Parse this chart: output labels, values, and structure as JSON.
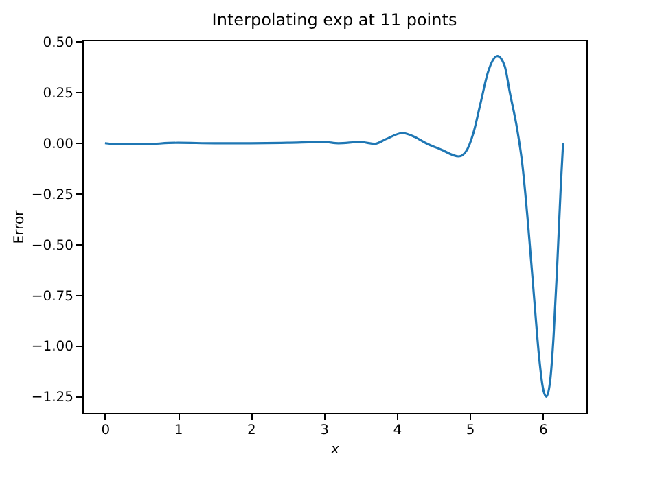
{
  "chart_data": {
    "type": "line",
    "title": "Interpolating exp at 11 points",
    "xlabel": "x",
    "ylabel": "Error",
    "xlim": [
      -0.31,
      6.6
    ],
    "xticks": [
      0,
      1,
      2,
      3,
      4,
      5,
      6
    ],
    "ylim": [
      -1.33,
      0.51
    ],
    "yticks": [
      {
        "value": 0.5,
        "label": "0.50"
      },
      {
        "value": 0.25,
        "label": "0.25"
      },
      {
        "value": 0,
        "label": "0.00"
      },
      {
        "value": -0.25,
        "label": "−0.25"
      },
      {
        "value": -0.5,
        "label": "−0.50"
      },
      {
        "value": -0.75,
        "label": "−0.75"
      },
      {
        "value": -1,
        "label": "−1.00"
      },
      {
        "value": -1.25,
        "label": "−1.25"
      }
    ],
    "grid": false,
    "marker": "none",
    "line_style": "solid",
    "series": [
      {
        "color": "#1f77b4",
        "x": [
          0,
          0.2,
          0.5,
          1,
          1.5,
          2,
          2.5,
          3,
          3.2,
          3.5,
          3.7,
          3.85,
          4.08,
          4.25,
          4.4,
          4.6,
          4.85,
          4.95,
          5.05,
          5.15,
          5.25,
          5.38,
          5.48,
          5.55,
          5.65,
          5.72,
          5.8,
          5.88,
          5.95,
          6.0,
          6.05,
          6.1,
          6.15,
          6.2,
          6.25,
          6.28
        ],
        "values": [
          0,
          -0.005,
          -0.005,
          0.002,
          0,
          0,
          0.002,
          0.006,
          0,
          0.006,
          -0.003,
          0.02,
          0.05,
          0.03,
          0,
          -0.03,
          -0.065,
          -0.04,
          0.05,
          0.2,
          0.35,
          0.43,
          0.38,
          0.25,
          0.07,
          -0.1,
          -0.4,
          -0.75,
          -1.05,
          -1.2,
          -1.25,
          -1.18,
          -0.95,
          -0.6,
          -0.2,
          0
        ]
      }
    ]
  }
}
